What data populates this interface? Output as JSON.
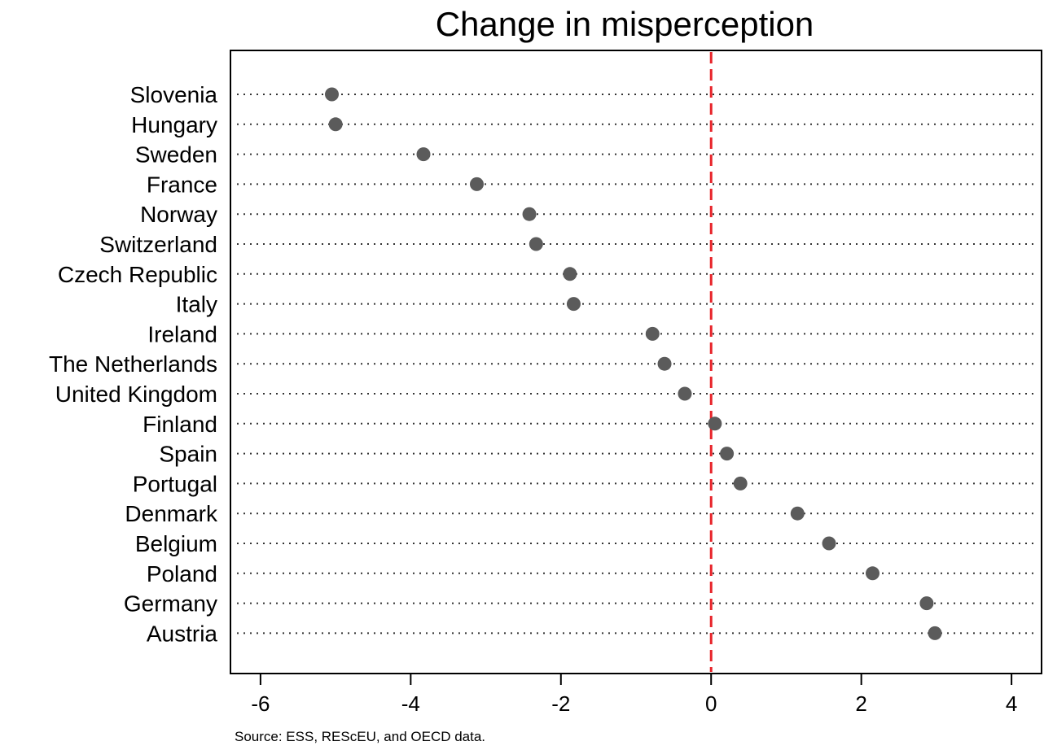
{
  "chart_data": {
    "type": "scatter",
    "title": "Change in misperception",
    "categories": [
      "Slovenia",
      "Hungary",
      "Sweden",
      "France",
      "Norway",
      "Switzerland",
      "Czech Republic",
      "Italy",
      "Ireland",
      "The Netherlands",
      "United Kingdom",
      "Finland",
      "Spain",
      "Portugal",
      "Denmark",
      "Belgium",
      "Poland",
      "Germany",
      "Austria"
    ],
    "values": [
      -5.05,
      -5.0,
      -3.83,
      -3.12,
      -2.42,
      -2.33,
      -1.88,
      -1.83,
      -0.78,
      -0.62,
      -0.35,
      0.05,
      0.21,
      0.39,
      1.15,
      1.57,
      2.15,
      2.87,
      2.98
    ],
    "xlim": [
      -6.4,
      4.4
    ],
    "xticks": [
      -6,
      -4,
      -2,
      0,
      2,
      4
    ],
    "xtick_labels": [
      "-6",
      "-4",
      "-2",
      "0",
      "2",
      "4"
    ],
    "reference_line": {
      "x": 0,
      "color": "#e8242a",
      "style": "dashed"
    },
    "marker_color": "#5b5b5b",
    "grid": {
      "horizontal": "dotted",
      "vertical": false
    },
    "xlabel": "",
    "ylabel": ""
  },
  "source_note": "Source: ESS, REScEU, and OECD data."
}
